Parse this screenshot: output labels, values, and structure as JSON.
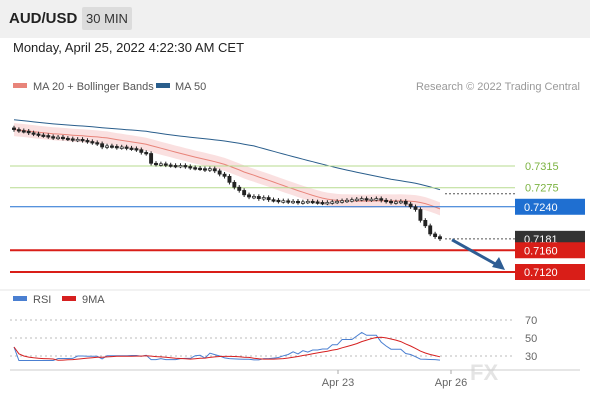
{
  "header": {
    "symbol": "AUD/USD",
    "timeframe": "30 MIN",
    "datetime": "Monday, April 25, 2022 4:22:30 AM CET"
  },
  "legend": {
    "ma20": {
      "label": "MA 20 + Bollinger Bands",
      "color": "#e8847a"
    },
    "ma50": {
      "label": "MA 50",
      "color": "#2a5e8c"
    },
    "credit": "Research © 2022 Trading Central"
  },
  "rsi_legend": {
    "rsi": "RSI",
    "rsi_color": "#4a7fd1",
    "ma": "9MA",
    "ma_color": "#d62020"
  },
  "watermark": "FX",
  "chart_data": [
    {
      "type": "candlestick",
      "title": "AUD/USD 30 MIN",
      "ylim": [
        0.71,
        0.74
      ],
      "x_ticks": [
        "Apr 23",
        "Apr 26"
      ],
      "last_price": 0.7181,
      "levels": [
        {
          "value": 0.7315,
          "label": "0.7315",
          "kind": "resistance",
          "color": "#7cb342"
        },
        {
          "value": 0.7275,
          "label": "0.7275",
          "kind": "resistance",
          "color": "#7cb342"
        },
        {
          "value": 0.724,
          "label": "0.7240",
          "kind": "pivot",
          "color": "#1f6fd1"
        },
        {
          "value": 0.7181,
          "label": "0.7181",
          "kind": "last",
          "color": "#333333"
        },
        {
          "value": 0.716,
          "label": "0.7160",
          "kind": "support",
          "color": "#d91e18"
        },
        {
          "value": 0.712,
          "label": "0.7120",
          "kind": "support",
          "color": "#d91e18"
        }
      ],
      "closes": [
        0.7382,
        0.738,
        0.7379,
        0.7376,
        0.7374,
        0.7372,
        0.7371,
        0.7369,
        0.7367,
        0.7368,
        0.7366,
        0.7365,
        0.7363,
        0.7364,
        0.7362,
        0.736,
        0.7358,
        0.7356,
        0.735,
        0.7352,
        0.7351,
        0.7349,
        0.735,
        0.7348,
        0.7347,
        0.7345,
        0.734,
        0.7338,
        0.732,
        0.7318,
        0.7319,
        0.7317,
        0.7316,
        0.7315,
        0.7316,
        0.7314,
        0.7312,
        0.7311,
        0.731,
        0.7308,
        0.731,
        0.7306,
        0.73,
        0.7296,
        0.7285,
        0.7276,
        0.727,
        0.7262,
        0.7258,
        0.7259,
        0.7255,
        0.7257,
        0.7253,
        0.7252,
        0.725,
        0.7251,
        0.7249,
        0.725,
        0.7248,
        0.7249,
        0.725,
        0.7249,
        0.7248,
        0.7247,
        0.7248,
        0.7249,
        0.725,
        0.7251,
        0.7252,
        0.7253,
        0.7254,
        0.7255,
        0.7253,
        0.7254,
        0.7255,
        0.7252,
        0.725,
        0.7248,
        0.7249,
        0.725,
        0.7245,
        0.724,
        0.7235,
        0.7215,
        0.7205,
        0.719,
        0.7185,
        0.7181
      ],
      "rsi_ticks": [
        70,
        50,
        30
      ]
    }
  ]
}
